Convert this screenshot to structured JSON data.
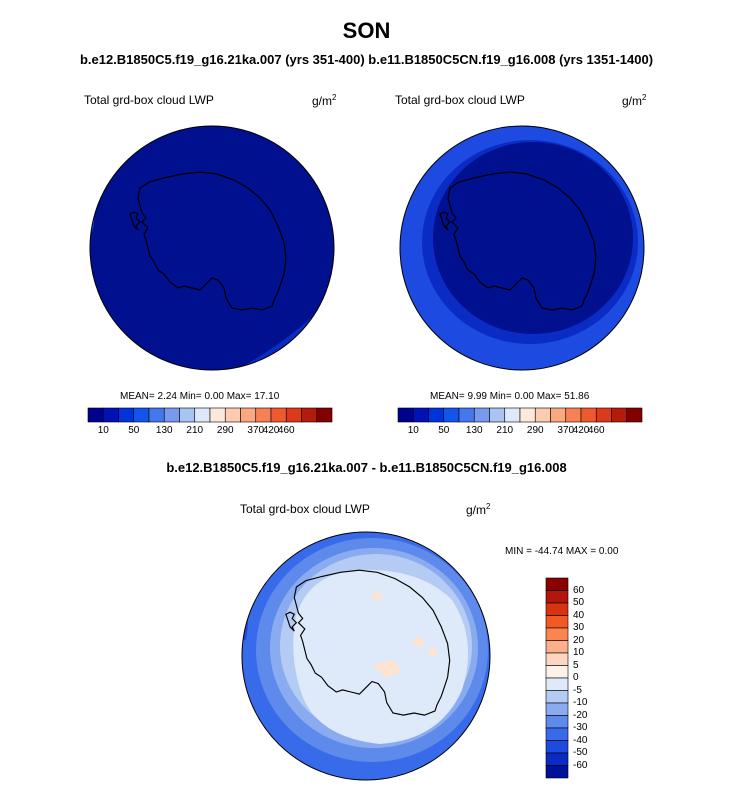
{
  "header": {
    "season": "SON",
    "cases": "b.e12.B1850C5.f19_g16.21ka.007 (yrs 351-400) b.e11.B1850C5CN.f19_g16.008 (yrs 1351-1400)",
    "difference": "b.e12.B1850C5.f19_g16.21ka.007 - b.e11.B1850C5CN.f19_g16.008"
  },
  "panels": {
    "left": {
      "label": "Total grd-box cloud LWP",
      "units": "g/m",
      "units_exp": "2",
      "stats": "MEAN=  2.24  Min=  0.00  Max=  17.10"
    },
    "right": {
      "label": "Total grd-box cloud LWP",
      "units": "g/m",
      "units_exp": "2",
      "stats": "MEAN=  9.99  Min=  0.00  Max=  51.86"
    },
    "diff": {
      "label": "Total grd-box cloud LWP",
      "units": "g/m",
      "units_exp": "2",
      "stats": "MIN = -44.74 MAX =   0.00"
    }
  },
  "colorbar_h": {
    "colors": [
      "#00008f",
      "#0011b8",
      "#0033dd",
      "#1155ee",
      "#4477ee",
      "#7799ee",
      "#aac4f2",
      "#dde9fa",
      "#fde8dc",
      "#fccbb0",
      "#fba880",
      "#f88055",
      "#f0582e",
      "#dc3a1a",
      "#b51a0c",
      "#840000"
    ],
    "labels": [
      "10",
      "50",
      "130",
      "210",
      "290",
      "370",
      "420",
      "460"
    ]
  },
  "colorbar_v": {
    "colors": [
      "#8a0000",
      "#b3160a",
      "#d8330f",
      "#f15a22",
      "#fa8550",
      "#fcaf8a",
      "#fdd6c2",
      "#fef1ea",
      "#deeaf9",
      "#b4ccf4",
      "#8aabf0",
      "#5e8aec",
      "#386bea",
      "#1d4be2",
      "#0a2cc4",
      "#00109a"
    ],
    "labels": [
      "60",
      "50",
      "40",
      "30",
      "20",
      "10",
      "5",
      "0",
      "-5",
      "-10",
      "-20",
      "-30",
      "-40",
      "-50",
      "-60"
    ]
  },
  "map_colors": {
    "left_bg": "#00108f",
    "right_bg": "#00108f",
    "right_ring": "#1d4be2",
    "diff_outer": "#386bea",
    "diff_mid": "#5e8aec",
    "diff_ring": "#8aabf0",
    "diff_inner": "#b4ccf4",
    "diff_core": "#deeaf9",
    "diff_blob": "#fde3d2"
  }
}
